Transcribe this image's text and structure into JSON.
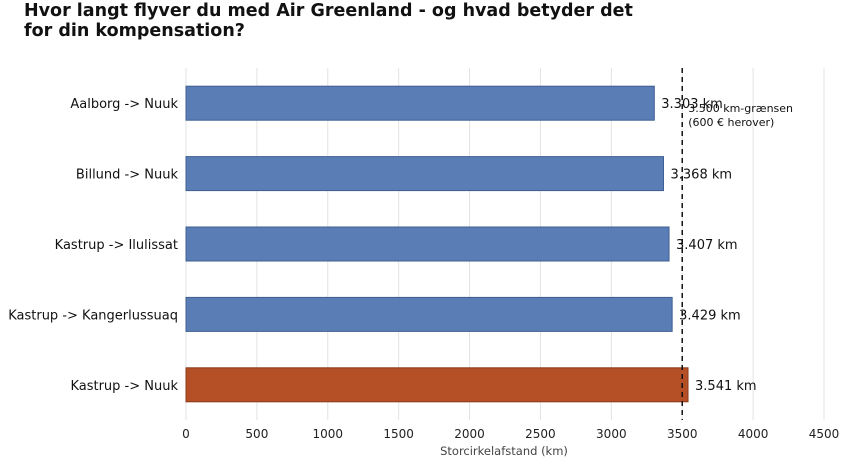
{
  "title": "Hvor langt flyver du med Air Greenland - og hvad betyder det for din kompensation?",
  "chart_data": {
    "type": "bar",
    "orientation": "horizontal",
    "title": "Hvor langt flyver du med Air Greenland - og hvad betyder det for din kompensation?",
    "xlabel": "Storcirkelafstand (km)",
    "ylabel": "",
    "xlim": [
      0,
      4500
    ],
    "xticks": [
      0,
      500,
      1000,
      1500,
      2000,
      2500,
      3000,
      3500,
      4000,
      4500
    ],
    "grid": "vertical",
    "categories": [
      "Aalborg -> Nuuk",
      "Billund -> Nuuk",
      "Kastrup -> Ilulissat",
      "Kastrup -> Kangerlussuaq",
      "Kastrup -> Nuuk"
    ],
    "values": [
      3303,
      3368,
      3407,
      3429,
      3541
    ],
    "value_labels": [
      "3.303 km",
      "3.368 km",
      "3.407 km",
      "3.429 km",
      "3.541 km"
    ],
    "bar_colors": [
      "#5a7db5",
      "#5a7db5",
      "#5a7db5",
      "#5a7db5",
      "#b44f26"
    ],
    "reference_line": {
      "value": 3500,
      "style": "dashed",
      "label_lines": [
        "3.500 km-grænsen",
        "(600 € herover)"
      ]
    }
  }
}
